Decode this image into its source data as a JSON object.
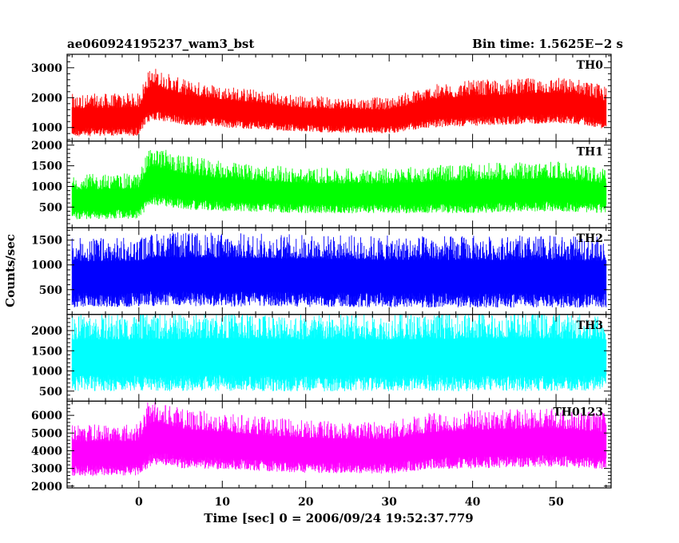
{
  "header": {
    "title": "ae060924195237_wam3_bst",
    "bin_time": "Bin time: 1.5625E−2 s"
  },
  "chart_data": {
    "type": "line",
    "xlabel": "Time [sec] 0 = 2006/09/24 19:52:37.779",
    "ylabel": "Counts/sec",
    "xlim": [
      -8.6,
      56.6
    ],
    "x_ticks": [
      0,
      10,
      20,
      30,
      40,
      50
    ],
    "grid": false,
    "panels": [
      {
        "name": "TH0",
        "color": "#ff0000",
        "ylim": [
          550,
          3450
        ],
        "y_ticks": [
          1000,
          2000,
          3000
        ],
        "profile": {
          "x": [
            -8,
            0,
            1,
            2,
            5,
            10,
            20,
            30,
            35,
            40,
            45,
            50,
            53,
            56
          ],
          "mean": [
            1350,
            1380,
            1950,
            2050,
            1800,
            1650,
            1400,
            1350,
            1650,
            1750,
            1800,
            1850,
            1800,
            1600
          ],
          "spread": [
            650,
            650,
            800,
            800,
            700,
            650,
            550,
            550,
            650,
            700,
            700,
            700,
            700,
            650
          ]
        }
      },
      {
        "name": "TH1",
        "color": "#00ff00",
        "ylim": [
          0,
          2100
        ],
        "y_ticks": [
          500,
          1000,
          1500,
          2000
        ],
        "profile": {
          "x": [
            -8,
            0,
            1,
            2,
            5,
            10,
            20,
            30,
            40,
            50,
            56
          ],
          "mean": [
            700,
            720,
            1100,
            1200,
            1050,
            950,
            850,
            850,
            900,
            950,
            850
          ],
          "spread": [
            500,
            500,
            650,
            650,
            600,
            550,
            500,
            500,
            550,
            550,
            500
          ]
        }
      },
      {
        "name": "TH2",
        "color": "#0000ff",
        "ylim": [
          0,
          1750
        ],
        "y_ticks": [
          500,
          1000,
          1500
        ],
        "profile": {
          "x": [
            -8,
            0,
            2,
            10,
            20,
            30,
            40,
            50,
            56
          ],
          "mean": [
            780,
            790,
            850,
            840,
            820,
            800,
            800,
            800,
            790
          ],
          "spread": [
            640,
            640,
            680,
            680,
            670,
            660,
            660,
            660,
            650
          ]
        }
      },
      {
        "name": "TH3",
        "color": "#00ffff",
        "ylim": [
          250,
          2400
        ],
        "y_ticks": [
          500,
          1000,
          1500,
          2000
        ],
        "profile": {
          "x": [
            -8,
            0,
            10,
            20,
            30,
            40,
            50,
            56
          ],
          "mean": [
            1380,
            1380,
            1400,
            1380,
            1380,
            1400,
            1400,
            1380
          ],
          "spread": [
            880,
            880,
            900,
            890,
            880,
            900,
            900,
            880
          ]
        }
      },
      {
        "name": "TH0123",
        "color": "#ff00ff",
        "ylim": [
          1900,
          6800
        ],
        "y_ticks": [
          2000,
          3000,
          4000,
          5000,
          6000
        ],
        "profile": {
          "x": [
            -8,
            0,
            1,
            2,
            5,
            10,
            20,
            30,
            35,
            40,
            45,
            50,
            56
          ],
          "mean": [
            3900,
            3950,
            4700,
            4900,
            4550,
            4400,
            4100,
            4050,
            4400,
            4500,
            4550,
            4600,
            4400
          ],
          "spread": [
            1350,
            1350,
            1700,
            1700,
            1550,
            1450,
            1350,
            1350,
            1450,
            1500,
            1500,
            1500,
            1450
          ]
        }
      }
    ]
  }
}
